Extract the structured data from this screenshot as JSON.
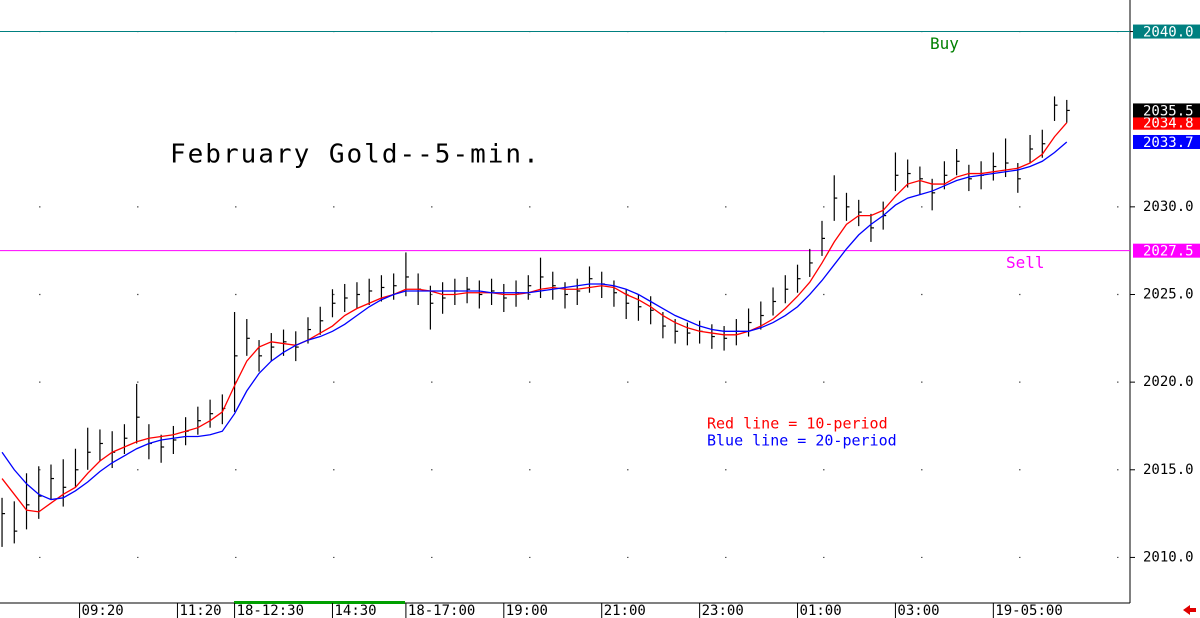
{
  "chart_data": {
    "type": "ohlc",
    "title": "February Gold--5-min.",
    "annotations": [
      {
        "text": "Red line = 10-period",
        "color": "#ff0000"
      },
      {
        "text": "Blue line = 20-period",
        "color": "#0000ff"
      }
    ],
    "x": [
      0,
      3,
      6,
      9,
      12,
      15,
      18,
      21,
      24,
      27,
      30,
      33,
      36,
      39,
      42,
      45,
      48,
      51,
      54,
      57,
      60,
      63,
      66,
      69,
      72,
      75,
      78,
      81,
      84,
      87,
      90,
      93,
      96,
      99,
      102,
      105,
      108,
      111,
      114,
      117,
      120,
      123,
      126,
      129,
      132,
      135,
      138,
      141,
      144,
      147,
      150,
      153,
      156,
      159,
      162,
      165,
      168,
      171,
      174,
      177,
      180,
      183,
      186,
      189,
      192,
      195,
      198,
      201,
      204,
      207,
      210,
      213,
      216,
      219,
      222,
      225,
      228,
      231,
      234,
      237,
      240,
      243,
      246,
      249,
      252,
      255,
      258,
      261
    ],
    "bars": {
      "color": "#000000",
      "high": [
        2013.4,
        2013.2,
        2014.8,
        2015.2,
        2015.3,
        2015.6,
        2016.2,
        2017.4,
        2017.3,
        2017.2,
        2017.6,
        2019.9,
        2017.6,
        2017.0,
        2017.5,
        2018.0,
        2018.6,
        2019.0,
        2019.3,
        2024.0,
        2023.6,
        2022.4,
        2022.8,
        2023.0,
        2022.9,
        2023.7,
        2024.3,
        2025.3,
        2025.6,
        2025.7,
        2025.9,
        2026.1,
        2026.2,
        2027.4,
        2026.2,
        2025.5,
        2025.7,
        2025.9,
        2026.0,
        2025.8,
        2025.9,
        2025.6,
        2025.8,
        2026.1,
        2027.1,
        2026.3,
        2025.7,
        2025.9,
        2026.6,
        2026.3,
        2025.8,
        2025.3,
        2025.0,
        2024.9,
        2024.0,
        2023.6,
        2023.4,
        2023.5,
        2023.3,
        2023.2,
        2023.6,
        2024.2,
        2024.6,
        2025.4,
        2026.1,
        2026.7,
        2027.6,
        2029.2,
        2031.8,
        2030.8,
        2030.4,
        2029.6,
        2030.3,
        2033.1,
        2032.7,
        2032.3,
        2031.6,
        2032.6,
        2033.3,
        2032.4,
        2032.6,
        2033.1,
        2033.9,
        2032.5,
        2034.1,
        2034.4,
        2036.3,
        2036.1
      ],
      "low": [
        2010.6,
        2010.8,
        2011.6,
        2012.2,
        2013.3,
        2012.9,
        2014.0,
        2015.0,
        2015.5,
        2015.1,
        2015.9,
        2016.5,
        2015.6,
        2015.4,
        2015.9,
        2016.4,
        2017.0,
        2017.4,
        2017.6,
        2018.3,
        2021.5,
        2020.6,
        2021.2,
        2021.5,
        2021.2,
        2022.2,
        2022.7,
        2023.7,
        2024.0,
        2024.2,
        2024.4,
        2024.6,
        2024.7,
        2024.9,
        2024.4,
        2023.0,
        2023.9,
        2024.4,
        2024.5,
        2024.2,
        2024.4,
        2024.0,
        2024.3,
        2024.7,
        2024.8,
        2024.7,
        2024.2,
        2024.4,
        2025.1,
        2024.8,
        2024.3,
        2023.6,
        2023.5,
        2023.3,
        2022.5,
        2022.2,
        2022.1,
        2022.2,
        2021.9,
        2021.8,
        2022.1,
        2022.6,
        2023.0,
        2023.8,
        2024.5,
        2025.1,
        2026.0,
        2027.2,
        2029.2,
        2029.2,
        2028.9,
        2028.0,
        2028.7,
        2030.9,
        2031.1,
        2030.7,
        2029.8,
        2031.0,
        2031.8,
        2030.9,
        2031.0,
        2031.5,
        2031.7,
        2030.8,
        2032.5,
        2032.8,
        2034.9,
        2034.8
      ],
      "close": [
        2012.5,
        2011.5,
        2013,
        2013.5,
        2014.5,
        2014,
        2015,
        2016,
        2016.5,
        2016,
        2016.8,
        2018,
        2016.5,
        2016.3,
        2016.7,
        2017.2,
        2017.8,
        2018.2,
        2018.5,
        2021.5,
        2022.5,
        2021.5,
        2022,
        2022.3,
        2022,
        2023,
        2023.5,
        2024.5,
        2024.8,
        2025,
        2025.2,
        2025.4,
        2025.5,
        2026,
        2025.3,
        2024.5,
        2024.8,
        2025.2,
        2025.3,
        2025,
        2025.2,
        2024.8,
        2025.1,
        2025.5,
        2026,
        2025.5,
        2025,
        2025.2,
        2025.9,
        2025.6,
        2025.1,
        2024.5,
        2024.3,
        2024.1,
        2023.2,
        2022.9,
        2022.8,
        2022.9,
        2022.6,
        2022.5,
        2022.9,
        2023.4,
        2023.8,
        2024.6,
        2025.3,
        2025.9,
        2026.8,
        2028.2,
        2030.5,
        2030,
        2029.7,
        2028.8,
        2029.5,
        2031.8,
        2031.9,
        2031.6,
        2030.8,
        2031.8,
        2032.6,
        2031.6,
        2031.8,
        2032.3,
        2032.5,
        2031.6,
        2033.3,
        2033.6,
        2035.8,
        2035.5
      ]
    },
    "moving_averages": [
      {
        "color": "#ff0000",
        "values": [
          2014.5,
          2013.6,
          2012.7,
          2012.6,
          2013.1,
          2013.6,
          2014.0,
          2014.8,
          2015.5,
          2016.0,
          2016.3,
          2016.6,
          2016.8,
          2016.9,
          2017.0,
          2017.2,
          2017.4,
          2017.8,
          2018.3,
          2019.8,
          2021.2,
          2022.0,
          2022.3,
          2022.2,
          2022.1,
          2022.4,
          2022.8,
          2023.2,
          2023.8,
          2024.2,
          2024.5,
          2024.8,
          2025.0,
          2025.3,
          2025.3,
          2025.2,
          2025.0,
          2025.0,
          2025.1,
          2025.1,
          2025.1,
          2025.0,
          2025.0,
          2025.1,
          2025.3,
          2025.4,
          2025.3,
          2025.3,
          2025.4,
          2025.5,
          2025.4,
          2025.0,
          2024.7,
          2024.3,
          2023.8,
          2023.4,
          2023.1,
          2022.9,
          2022.8,
          2022.7,
          2022.7,
          2022.9,
          2023.2,
          2023.6,
          2024.2,
          2024.9,
          2025.7,
          2026.8,
          2028.0,
          2029.0,
          2029.5,
          2029.5,
          2029.8,
          2030.6,
          2031.3,
          2031.5,
          2031.3,
          2031.3,
          2031.7,
          2031.9,
          2031.9,
          2032.0,
          2032.1,
          2032.2,
          2032.5,
          2033.0,
          2034.0,
          2034.8
        ]
      },
      {
        "color": "#0000ff",
        "values": [
          2016.0,
          2015.0,
          2014.2,
          2013.6,
          2013.3,
          2013.4,
          2013.8,
          2014.3,
          2014.9,
          2015.4,
          2015.8,
          2016.2,
          2016.5,
          2016.7,
          2016.8,
          2016.9,
          2016.9,
          2017.0,
          2017.2,
          2018.2,
          2019.5,
          2020.5,
          2021.2,
          2021.7,
          2022.1,
          2022.4,
          2022.6,
          2022.9,
          2023.3,
          2023.8,
          2024.3,
          2024.7,
          2025.0,
          2025.2,
          2025.2,
          2025.2,
          2025.2,
          2025.2,
          2025.2,
          2025.2,
          2025.1,
          2025.1,
          2025.1,
          2025.1,
          2025.2,
          2025.3,
          2025.4,
          2025.5,
          2025.6,
          2025.6,
          2025.5,
          2025.3,
          2025.0,
          2024.6,
          2024.2,
          2023.8,
          2023.5,
          2023.2,
          2023.0,
          2022.9,
          2022.9,
          2022.9,
          2023.1,
          2023.4,
          2023.8,
          2024.3,
          2025.0,
          2025.8,
          2026.7,
          2027.6,
          2028.4,
          2029.0,
          2029.5,
          2030.1,
          2030.5,
          2030.7,
          2030.9,
          2031.2,
          2031.5,
          2031.7,
          2031.8,
          2031.9,
          2032.0,
          2032.1,
          2032.3,
          2032.6,
          2033.1,
          2033.7
        ]
      }
    ],
    "levels": [
      {
        "name": "Buy",
        "value": 2040,
        "label": "2040.0",
        "color": "#008080",
        "text_color": "#008000"
      },
      {
        "name": "Sell",
        "value": 2027.5,
        "label": "2027.5",
        "color": "#ff00ff",
        "text_color": "#ff00ff"
      }
    ],
    "xlim": [
      -0.5,
      276.5
    ],
    "xticks": [
      {
        "value": 19,
        "label": "09:20"
      },
      {
        "value": 43,
        "label": "11:20"
      },
      {
        "value": 57,
        "label": "18-12:30"
      },
      {
        "value": 81,
        "label": "14:30"
      },
      {
        "value": 99,
        "label": "18-17:00"
      },
      {
        "value": 123,
        "label": "19:00"
      },
      {
        "value": 147,
        "label": "21:00"
      },
      {
        "value": 171,
        "label": "23:00"
      },
      {
        "value": 195,
        "label": "01:00"
      },
      {
        "value": 219,
        "label": "03:00"
      },
      {
        "value": 243,
        "label": "19-05:00"
      }
    ],
    "ylim": [
      2007.4,
      2041.8
    ],
    "yticks": [
      {
        "value": 2010,
        "label": "2010.0"
      },
      {
        "value": 2015,
        "label": "2015.0"
      },
      {
        "value": 2020,
        "label": "2020.0"
      },
      {
        "value": 2025,
        "label": "2025.0"
      },
      {
        "value": 2030,
        "label": "2030.0"
      },
      {
        "value": 2040,
        "label": "2040.0"
      }
    ],
    "grid": true
  }
}
